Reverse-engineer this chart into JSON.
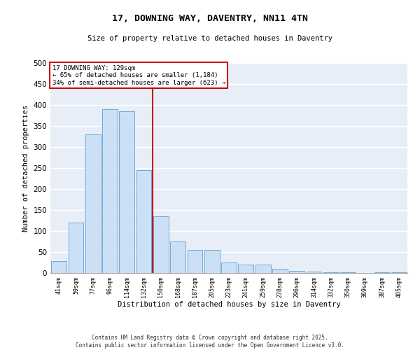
{
  "title1": "17, DOWNING WAY, DAVENTRY, NN11 4TN",
  "title2": "Size of property relative to detached houses in Daventry",
  "xlabel": "Distribution of detached houses by size in Daventry",
  "ylabel": "Number of detached properties",
  "categories": [
    "41sqm",
    "59sqm",
    "77sqm",
    "96sqm",
    "114sqm",
    "132sqm",
    "150sqm",
    "168sqm",
    "187sqm",
    "205sqm",
    "223sqm",
    "241sqm",
    "259sqm",
    "278sqm",
    "296sqm",
    "314sqm",
    "332sqm",
    "350sqm",
    "369sqm",
    "387sqm",
    "405sqm"
  ],
  "values": [
    28,
    120,
    330,
    390,
    385,
    245,
    135,
    75,
    55,
    55,
    25,
    20,
    20,
    10,
    5,
    3,
    2,
    2,
    0,
    1,
    1
  ],
  "bar_color": "#cce0f5",
  "bar_edge_color": "#6aaad4",
  "background_color": "#e8eef8",
  "grid_color": "#ffffff",
  "vline_x": 5.5,
  "vline_color": "#cc0000",
  "annotation_title": "17 DOWNING WAY: 129sqm",
  "annotation_line1": "← 65% of detached houses are smaller (1,184)",
  "annotation_line2": "34% of semi-detached houses are larger (623) →",
  "annotation_box_color": "#cc0000",
  "footer_line1": "Contains HM Land Registry data © Crown copyright and database right 2025.",
  "footer_line2": "Contains public sector information licensed under the Open Government Licence v3.0.",
  "ylim": [
    0,
    500
  ],
  "yticks": [
    0,
    50,
    100,
    150,
    200,
    250,
    300,
    350,
    400,
    450,
    500
  ]
}
